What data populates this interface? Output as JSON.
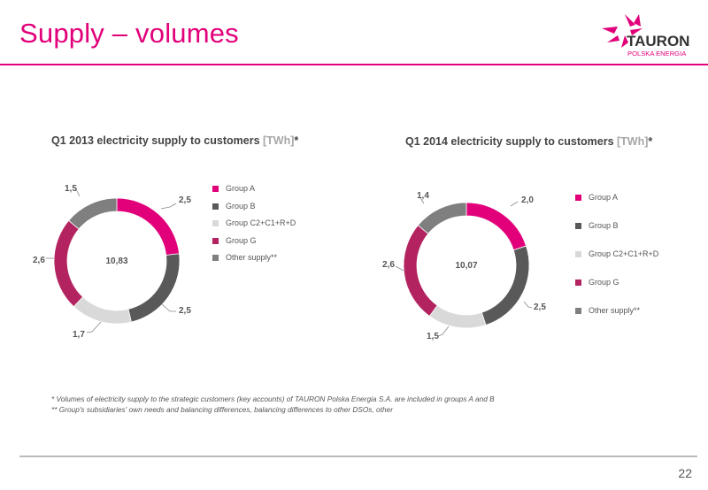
{
  "slide": {
    "title": "Supply – volumes",
    "logo": {
      "brand": "TAURON",
      "sub": "POLSKA ENERGIA"
    },
    "footnotes": [
      "* Volumes of electricity supply to the strategic customers (key accounts) of TAURON Polska Energia S.A. are included in groups A and B",
      "** Group's subsidiaries' own needs and balancing differences, balancing differences to other DSOs, other"
    ],
    "page_number": "22",
    "colors": {
      "accent": "#e2007a",
      "grey_line": "#bbbbbb"
    }
  },
  "chart_data": [
    {
      "type": "donut",
      "title_main": "Q1 2013 electricity supply to customers ",
      "title_unit": "[TWh]",
      "title_suffix": "*",
      "center_label": "10,83",
      "categories": [
        "Group A",
        "Group B",
        "Group C2+C1+R+D",
        "Group G",
        "Other supply**"
      ],
      "values": [
        2.5,
        2.5,
        1.7,
        2.6,
        1.5
      ],
      "value_labels": [
        "2,5",
        "2,5",
        "1,7",
        "2,6",
        "1,5"
      ],
      "colors": [
        "#e2007a",
        "#595959",
        "#d9d9d9",
        "#b3235f",
        "#7f7f7f"
      ],
      "legend_position": "right"
    },
    {
      "type": "donut",
      "title_main": "Q1 2014 electricity supply to customers ",
      "title_unit": "[TWh]",
      "title_suffix": "*",
      "center_label": "10,07",
      "categories": [
        "Group A",
        "Group B",
        "Group C2+C1+R+D",
        "Group G",
        "Other supply**"
      ],
      "values": [
        2.0,
        2.5,
        1.5,
        2.6,
        1.4
      ],
      "value_labels": [
        "2,0",
        "2,5",
        "1,5",
        "2,6",
        "1,4"
      ],
      "colors": [
        "#e2007a",
        "#595959",
        "#d9d9d9",
        "#b3235f",
        "#7f7f7f"
      ],
      "legend_position": "right"
    }
  ]
}
